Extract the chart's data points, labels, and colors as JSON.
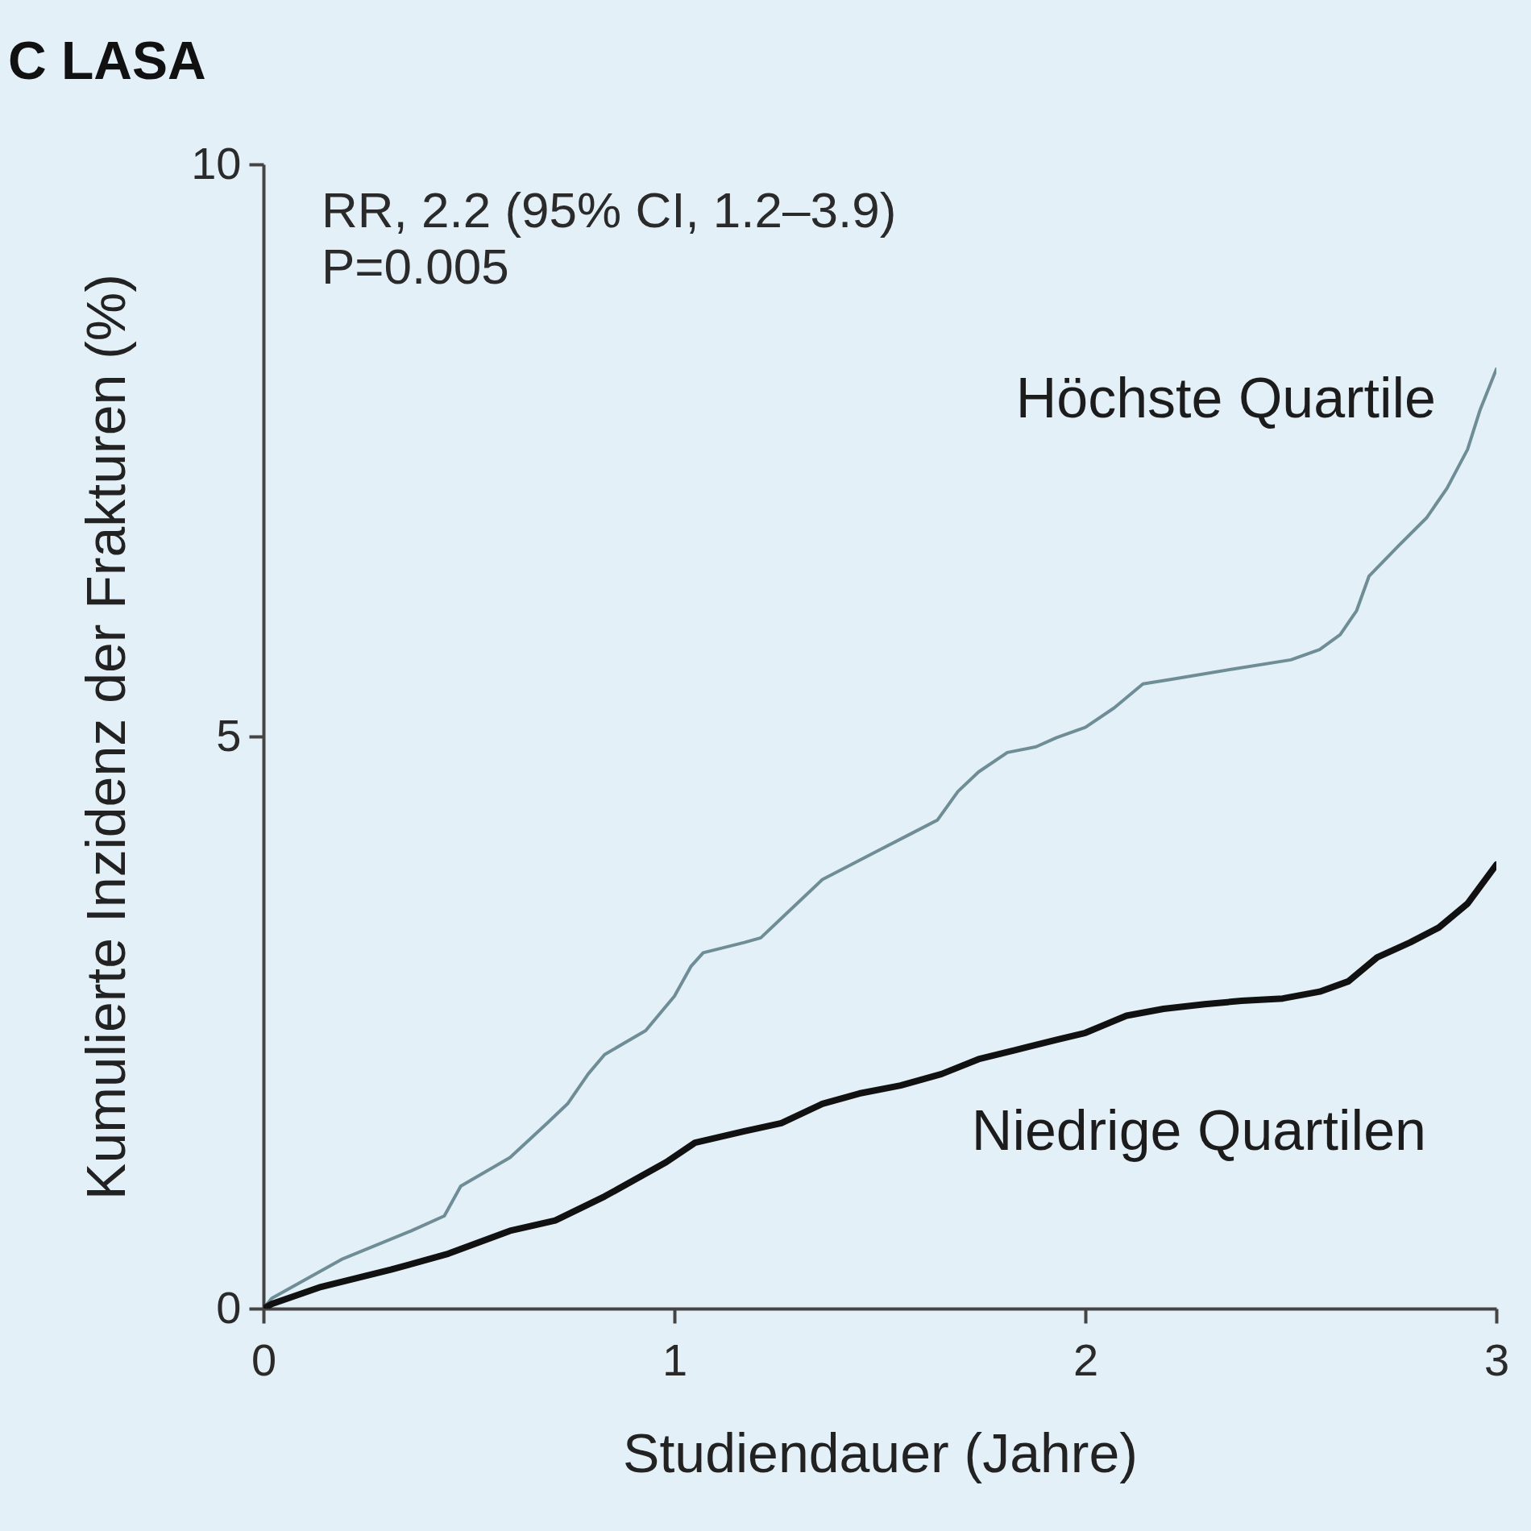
{
  "chart_data": {
    "type": "line",
    "title": "C LASA",
    "xlabel": "Studiendauer (Jahre)",
    "ylabel": "Kumulierte Inzidenz der Frakturen (%)",
    "annotations": [
      "RR, 2.2 (95% CI, 1.2–3.9)",
      "P=0.005"
    ],
    "xlim": [
      0,
      3
    ],
    "ylim": [
      0,
      10
    ],
    "xticks": [
      0,
      1,
      2,
      3
    ],
    "yticks": [
      0,
      5,
      10
    ],
    "series": [
      {
        "name": "Höchste Quartile",
        "color": "#6f8d96",
        "x": [
          0,
          0.02,
          0.19,
          0.36,
          0.44,
          0.48,
          0.6,
          0.69,
          0.74,
          0.79,
          0.83,
          0.93,
          1.0,
          1.04,
          1.07,
          1.17,
          1.21,
          1.26,
          1.36,
          1.43,
          1.5,
          1.57,
          1.64,
          1.69,
          1.74,
          1.81,
          1.88,
          1.93,
          2.0,
          2.07,
          2.14,
          2.21,
          2.36,
          2.5,
          2.57,
          2.62,
          2.66,
          2.69,
          2.76,
          2.83,
          2.88,
          2.93,
          2.96,
          3.0
        ],
        "values": [
          0,
          0.09,
          0.43,
          0.68,
          0.81,
          1.07,
          1.32,
          1.62,
          1.79,
          2.05,
          2.22,
          2.43,
          2.73,
          2.99,
          3.11,
          3.2,
          3.24,
          3.41,
          3.75,
          3.88,
          4.01,
          4.14,
          4.27,
          4.52,
          4.69,
          4.86,
          4.91,
          4.99,
          5.08,
          5.25,
          5.46,
          5.5,
          5.59,
          5.67,
          5.76,
          5.89,
          6.1,
          6.4,
          6.66,
          6.91,
          7.17,
          7.51,
          7.85,
          8.21
        ]
      },
      {
        "name": "Niedrige Quartilen",
        "color": "#111111",
        "x": [
          0,
          0.02,
          0.14,
          0.31,
          0.45,
          0.6,
          0.71,
          0.83,
          0.98,
          1.05,
          1.17,
          1.26,
          1.36,
          1.45,
          1.55,
          1.65,
          1.74,
          1.83,
          1.93,
          2.0,
          2.1,
          2.19,
          2.29,
          2.38,
          2.48,
          2.57,
          2.64,
          2.71,
          2.79,
          2.86,
          2.93,
          3.0
        ],
        "values": [
          0,
          0.04,
          0.19,
          0.34,
          0.48,
          0.68,
          0.77,
          0.98,
          1.28,
          1.45,
          1.55,
          1.62,
          1.79,
          1.88,
          1.95,
          2.05,
          2.18,
          2.26,
          2.35,
          2.41,
          2.56,
          2.62,
          2.66,
          2.69,
          2.71,
          2.77,
          2.86,
          3.07,
          3.2,
          3.33,
          3.54,
          3.88
        ]
      }
    ]
  }
}
